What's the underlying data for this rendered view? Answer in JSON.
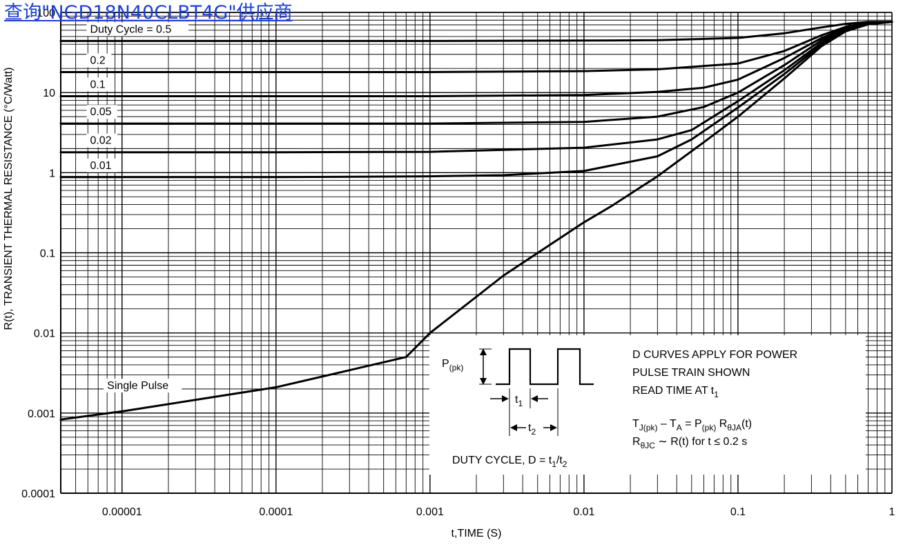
{
  "header_link": "查询\"NGD18N40CLBT4G\"供应商",
  "chart_data": {
    "type": "line",
    "xlabel": "t,TIME (S)",
    "ylabel": "R(t), TRANSIENT THERMAL RESISTANCE (°C/Watt)",
    "x_scale": "log",
    "y_scale": "log",
    "xlim": [
      4e-06,
      1
    ],
    "ylim": [
      0.0001,
      100
    ],
    "grid": true,
    "x_ticks": [
      {
        "value": 1e-05,
        "label": "0.00001"
      },
      {
        "value": 0.0001,
        "label": "0.0001"
      },
      {
        "value": 0.001,
        "label": "0.001"
      },
      {
        "value": 0.01,
        "label": "0.01"
      },
      {
        "value": 0.1,
        "label": "0.1"
      },
      {
        "value": 1,
        "label": "1"
      }
    ],
    "y_ticks": [
      {
        "value": 0.0001,
        "label": "0.0001"
      },
      {
        "value": 0.001,
        "label": "0.001"
      },
      {
        "value": 0.01,
        "label": "0.01"
      },
      {
        "value": 0.1,
        "label": "0.1"
      },
      {
        "value": 1,
        "label": "1"
      },
      {
        "value": 10,
        "label": "10"
      },
      {
        "value": 100,
        "label": "100"
      }
    ],
    "series": [
      {
        "name": "Duty Cycle = 0.5",
        "label_x": 6.2e-06,
        "x": [
          4e-06,
          0.0001,
          0.001,
          0.01,
          0.03,
          0.1,
          0.2,
          0.35,
          0.5,
          0.7,
          1
        ],
        "y": [
          44,
          44,
          44,
          44.5,
          45,
          48,
          55,
          65,
          72,
          76,
          76
        ]
      },
      {
        "name": "0.2",
        "label_x": 6.2e-06,
        "x": [
          4e-06,
          0.0001,
          0.001,
          0.01,
          0.03,
          0.1,
          0.2,
          0.35,
          0.5,
          0.7,
          1
        ],
        "y": [
          18,
          18,
          18,
          18.5,
          19.5,
          23,
          33,
          52,
          66,
          75,
          76
        ]
      },
      {
        "name": "0.1",
        "label_x": 6.2e-06,
        "x": [
          4e-06,
          0.0001,
          0.001,
          0.01,
          0.03,
          0.06,
          0.1,
          0.2,
          0.35,
          0.5,
          0.7,
          1
        ],
        "y": [
          9,
          9,
          9,
          9.3,
          10.2,
          11.5,
          14.5,
          27,
          48,
          64,
          74,
          76
        ]
      },
      {
        "name": "0.05",
        "label_x": 6.2e-06,
        "x": [
          4e-06,
          0.0001,
          0.001,
          0.01,
          0.03,
          0.06,
          0.1,
          0.2,
          0.35,
          0.5,
          0.7,
          1
        ],
        "y": [
          4.1,
          4.1,
          4.1,
          4.3,
          5.0,
          6.6,
          10,
          22,
          45,
          62,
          73,
          76
        ]
      },
      {
        "name": "0.02",
        "label_x": 6.2e-06,
        "x": [
          4e-06,
          0.0001,
          0.001,
          0.01,
          0.03,
          0.05,
          0.1,
          0.2,
          0.35,
          0.5,
          0.7,
          1
        ],
        "y": [
          1.8,
          1.8,
          1.82,
          2.05,
          2.6,
          3.4,
          7.8,
          19,
          42,
          61,
          73,
          76
        ]
      },
      {
        "name": "0.01",
        "label_x": 6.2e-06,
        "x": [
          4e-06,
          0.0001,
          0.001,
          0.003,
          0.01,
          0.03,
          0.05,
          0.1,
          0.2,
          0.35,
          0.5,
          0.7,
          1
        ],
        "y": [
          0.88,
          0.88,
          0.9,
          0.93,
          1.05,
          1.6,
          2.6,
          6.5,
          17,
          40,
          60,
          72,
          76
        ]
      },
      {
        "name": "Single Pulse",
        "label_x": 8e-06,
        "x": [
          4e-06,
          1e-05,
          0.0001,
          0.0007,
          0.001,
          0.003,
          0.01,
          0.015,
          0.03,
          0.06,
          0.1,
          0.2,
          0.35,
          0.5,
          0.7,
          1
        ],
        "y": [
          0.00083,
          0.00105,
          0.0021,
          0.005,
          0.01,
          0.052,
          0.24,
          0.38,
          0.9,
          2.4,
          5.0,
          15,
          38,
          58,
          71,
          76
        ]
      }
    ]
  },
  "inset": {
    "p_label": "P",
    "p_sub": "(pk)",
    "t1_label": "t",
    "t1_sub": "1",
    "t2_label": "t",
    "t2_sub": "2",
    "duty_text": "DUTY CYCLE, D = t",
    "duty_sub1": "1",
    "duty_mid": "/t",
    "duty_sub2": "2",
    "line1": "D CURVES APPLY FOR POWER",
    "line2": "PULSE TRAIN SHOWN",
    "line3": "READ TIME AT t",
    "line3_sub": "1",
    "eq1_a": "T",
    "eq1_a_sub": "J(pk)",
    "eq1_b": " – T",
    "eq1_b_sub": "A",
    "eq1_c": " = P",
    "eq1_c_sub": "(pk)",
    "eq1_d": " R",
    "eq1_d_sub": "θJA",
    "eq1_e": "(t)",
    "eq2_a": "R",
    "eq2_a_sub": "θJC",
    "eq2_b": " ∼ R(t) for t ≤ 0.2 s"
  }
}
